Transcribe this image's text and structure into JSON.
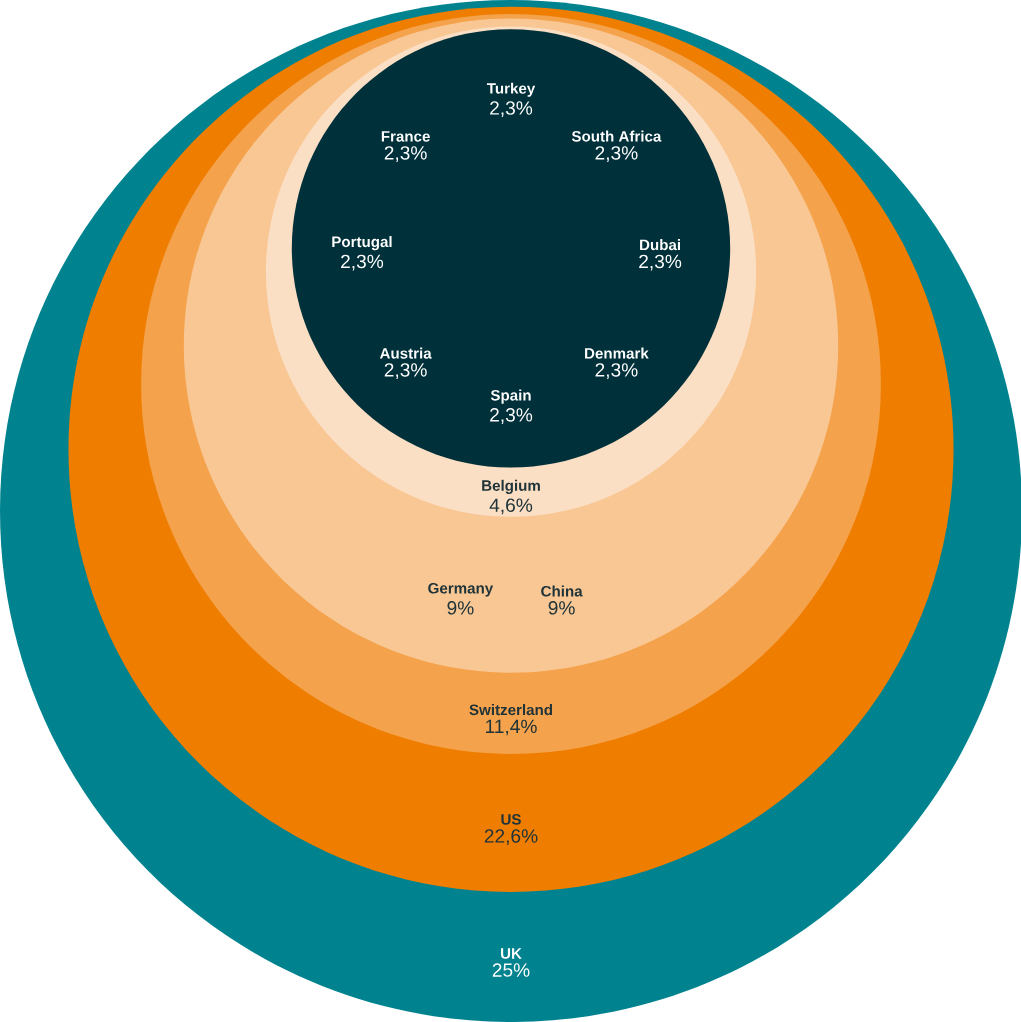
{
  "chart_data": {
    "type": "other",
    "categories": [
      "UK",
      "US",
      "Switzerland",
      "Germany",
      "China",
      "Belgium",
      "Turkey",
      "South Africa",
      "Dubai",
      "Denmark",
      "Spain",
      "Austria",
      "Portugal",
      "France"
    ],
    "values": [
      25,
      22.6,
      11.4,
      9,
      9,
      4.6,
      2.3,
      2.3,
      2.3,
      2.3,
      2.3,
      2.3,
      2.3,
      2.3
    ],
    "value_labels": [
      "25%",
      "22,6%",
      "11,4%",
      "9%",
      "9%",
      "4,6%",
      "2,3%",
      "2,3%",
      "2,3%",
      "2,3%",
      "2,3%",
      "2,3%",
      "2,3%",
      "2,3%"
    ],
    "colors": [
      "#00838f",
      "#ef7d00",
      "#f4a24b",
      "#f9c794",
      "#f9c794",
      "#fbdfc4",
      "#00303a",
      "#00303a",
      "#00303a",
      "#00303a",
      "#00303a",
      "#00303a",
      "#00303a",
      "#00303a"
    ]
  }
}
